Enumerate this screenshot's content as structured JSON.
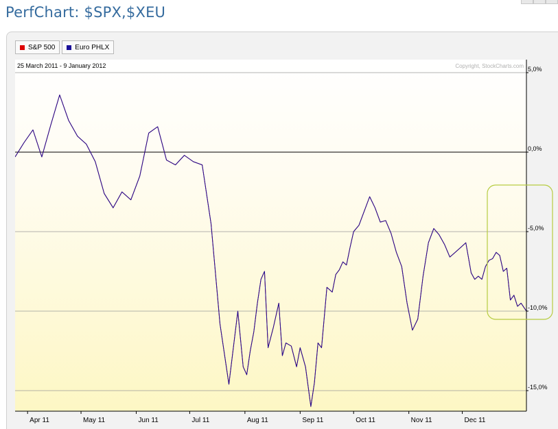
{
  "title": "PerfChart: $SPX,$XEU",
  "date_range": "25 March 2011 - 9 January 2012",
  "copyright": "Copyright, StockCharts.com",
  "colors": {
    "sp500": "#dd0000",
    "euro": "#1a0f99",
    "highlight": "#b6cc40"
  },
  "legend": [
    {
      "label": "S&P 500",
      "color": "#dd0000"
    },
    {
      "label": "Euro PHLX",
      "color": "#1a0f99"
    }
  ],
  "chart_data": {
    "type": "line",
    "title": "PerfChart: $SPX,$XEU",
    "xlabel": "",
    "ylabel": "",
    "x_range": [
      0,
      287
    ],
    "ylim": [
      -16.5,
      5.2
    ],
    "y_ticks": [
      {
        "value": 5,
        "label": "5,0%"
      },
      {
        "value": 0,
        "label": "0,0%"
      },
      {
        "value": -5,
        "label": "-5,0%"
      },
      {
        "value": -10,
        "label": "-10,0%"
      },
      {
        "value": -15,
        "label": "-15,0%"
      }
    ],
    "x_ticks": [
      {
        "value": 7,
        "label": "Apr 11"
      },
      {
        "value": 37,
        "label": "May 11"
      },
      {
        "value": 68,
        "label": "Jun 11"
      },
      {
        "value": 98,
        "label": "Jul 11"
      },
      {
        "value": 129,
        "label": "Aug 11"
      },
      {
        "value": 160,
        "label": "Sep 11"
      },
      {
        "value": 190,
        "label": "Oct 11"
      },
      {
        "value": 221,
        "label": "Nov 11"
      },
      {
        "value": 251,
        "label": "Dec 11"
      }
    ],
    "series": [
      {
        "name": "S&P 500",
        "color": "#dd0000",
        "x": [
          0,
          5,
          10,
          15,
          20,
          25,
          30,
          35,
          40,
          45,
          50,
          55,
          60,
          65,
          70,
          75,
          80,
          85,
          90,
          95,
          100,
          105,
          110,
          115,
          120,
          125,
          128,
          130,
          132,
          134,
          136,
          138,
          140,
          142,
          145,
          148,
          150,
          152,
          155,
          158,
          160,
          163,
          166,
          168,
          170,
          172,
          175,
          178,
          180,
          182,
          184,
          186,
          188,
          190,
          193,
          196,
          199,
          202,
          205,
          208,
          211,
          214,
          217,
          220,
          223,
          226,
          229,
          232,
          235,
          238,
          241,
          244,
          247,
          250,
          253,
          256,
          258,
          260,
          262,
          264,
          266,
          268,
          270,
          272,
          274,
          276,
          278,
          280,
          282,
          284,
          287
        ],
        "values": [
          -0.3,
          0.6,
          1.4,
          -0.3,
          1.7,
          3.6,
          2.0,
          1.0,
          0.5,
          -0.6,
          -2.6,
          -3.5,
          -2.5,
          -3.0,
          -1.5,
          1.2,
          1.6,
          -0.5,
          -0.8,
          -0.2,
          -0.6,
          -0.8,
          -4.5,
          -10.8,
          -14.6,
          -10.0,
          -13.5,
          -14.0,
          -12.5,
          -11.3,
          -9.5,
          -8.0,
          -7.5,
          -12.3,
          -11.0,
          -9.5,
          -12.8,
          -12.0,
          -12.2,
          -13.5,
          -12.3,
          -13.5,
          -16.0,
          -14.5,
          -12.0,
          -12.3,
          -8.5,
          -8.8,
          -7.7,
          -7.4,
          -6.9,
          -7.1,
          -6.0,
          -5.0,
          -4.6,
          -3.7,
          -2.8,
          -3.5,
          -4.4,
          -4.3,
          -5.1,
          -6.3,
          -7.2,
          -9.5,
          -11.2,
          -10.5,
          -7.8,
          -5.7,
          -4.8,
          -5.2,
          -5.8,
          -6.6,
          -6.3,
          -6.0,
          -5.7,
          -7.6,
          -8.0,
          -7.8,
          -8.0,
          -7.2,
          -6.8,
          -6.7,
          -6.3,
          -6.5,
          -7.5,
          -7.3,
          -9.3,
          -9.0,
          -9.7,
          -9.5,
          -10.0
        ]
      },
      {
        "name": "Euro PHLX",
        "color": "#1a0f99",
        "x": [
          0,
          5,
          10,
          15,
          20,
          25,
          30,
          35,
          40,
          45,
          50,
          55,
          60,
          65,
          70,
          75,
          80,
          85,
          90,
          95,
          100,
          105,
          110,
          115,
          120,
          125,
          128,
          130,
          132,
          134,
          136,
          138,
          140,
          142,
          145,
          148,
          150,
          152,
          155,
          158,
          160,
          163,
          166,
          168,
          170,
          172,
          175,
          178,
          180,
          182,
          184,
          186,
          188,
          190,
          193,
          196,
          199,
          202,
          205,
          208,
          211,
          214,
          217,
          220,
          223,
          226,
          229,
          232,
          235,
          238,
          241,
          244,
          247,
          250,
          253,
          256,
          258,
          260,
          262,
          264,
          266,
          268,
          270,
          272,
          274,
          276,
          278,
          280,
          282,
          284,
          287
        ],
        "values": [
          -0.3,
          0.6,
          1.4,
          -0.3,
          1.7,
          3.6,
          2.0,
          1.0,
          0.5,
          -0.6,
          -2.6,
          -3.5,
          -2.5,
          -3.0,
          -1.5,
          1.2,
          1.6,
          -0.5,
          -0.8,
          -0.2,
          -0.6,
          -0.8,
          -4.5,
          -10.8,
          -14.6,
          -10.0,
          -13.5,
          -14.0,
          -12.5,
          -11.3,
          -9.5,
          -8.0,
          -7.5,
          -12.3,
          -11.0,
          -9.5,
          -12.8,
          -12.0,
          -12.2,
          -13.5,
          -12.3,
          -13.5,
          -16.0,
          -14.5,
          -12.0,
          -12.3,
          -8.5,
          -8.8,
          -7.7,
          -7.4,
          -6.9,
          -7.1,
          -6.0,
          -5.0,
          -4.6,
          -3.7,
          -2.8,
          -3.5,
          -4.4,
          -4.3,
          -5.1,
          -6.3,
          -7.2,
          -9.5,
          -11.2,
          -10.5,
          -7.8,
          -5.7,
          -4.8,
          -5.2,
          -5.8,
          -6.6,
          -6.3,
          -6.0,
          -5.7,
          -7.6,
          -8.0,
          -7.8,
          -8.0,
          -7.2,
          -6.8,
          -6.7,
          -6.3,
          -6.5,
          -7.5,
          -7.3,
          -9.3,
          -9.0,
          -9.7,
          -9.5,
          -10.0
        ]
      }
    ]
  }
}
